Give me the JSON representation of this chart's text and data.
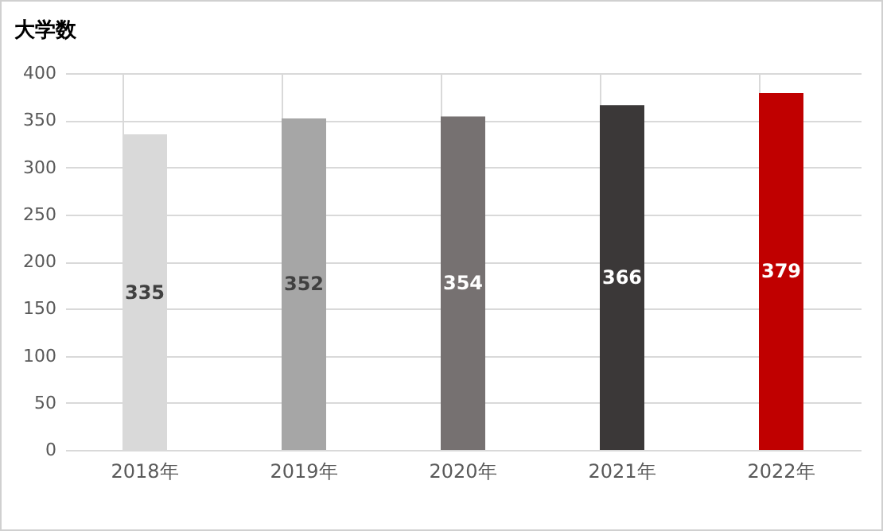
{
  "chart_data": {
    "type": "bar",
    "title": "大学数",
    "categories": [
      "2018年",
      "2019年",
      "2020年",
      "2021年",
      "2022年"
    ],
    "values": [
      335,
      352,
      354,
      366,
      379
    ],
    "colors": [
      "#d9d9d9",
      "#a6a6a6",
      "#767171",
      "#3b3838",
      "#c00000"
    ],
    "ylim": [
      0,
      400
    ],
    "yticks": [
      0,
      50,
      100,
      150,
      200,
      250,
      300,
      350,
      400
    ],
    "grid": true,
    "data_labels": true
  }
}
